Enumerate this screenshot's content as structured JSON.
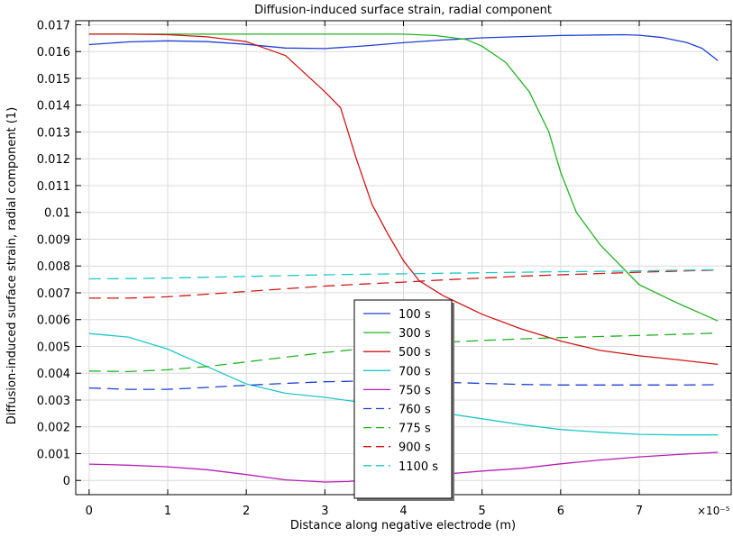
{
  "chart_data": {
    "type": "line",
    "title": "Diffusion-induced surface strain, radial component",
    "xlabel": "Distance along negative electrode (m)",
    "ylabel": "Diffusion-induced surface strain, radial component (1)",
    "x_multiplier": "×10⁻⁵",
    "xlim": [
      -0.17,
      8.17
    ],
    "ylim": [
      -0.00053,
      0.01715
    ],
    "x_ticks": [
      0,
      1,
      2,
      3,
      4,
      5,
      6,
      7
    ],
    "y_ticks": [
      0,
      0.001,
      0.002,
      0.003,
      0.004,
      0.005,
      0.006,
      0.007,
      0.008,
      0.009,
      0.01,
      0.011,
      0.012,
      0.013,
      0.014,
      0.015,
      0.016,
      0.017
    ],
    "grid": true,
    "legend_position": "center",
    "series": [
      {
        "name": "100 s",
        "color": "#1f3fd6",
        "dash": "solid",
        "x": [
          0,
          0.5,
          1,
          1.5,
          2,
          2.5,
          3,
          3.5,
          4,
          4.5,
          5,
          5.5,
          6,
          6.5,
          6.8,
          7,
          7.3,
          7.6,
          7.8,
          8.0
        ],
        "y": [
          0.01626,
          0.01636,
          0.0164,
          0.01637,
          0.01627,
          0.01613,
          0.01611,
          0.01621,
          0.01633,
          0.01643,
          0.01651,
          0.01656,
          0.0166,
          0.01662,
          0.01663,
          0.01661,
          0.01652,
          0.01634,
          0.01612,
          0.01566
        ]
      },
      {
        "name": "300 s",
        "color": "#22b322",
        "dash": "solid",
        "x": [
          0,
          1,
          2,
          3,
          4,
          4.4,
          4.8,
          5.0,
          5.3,
          5.6,
          5.85,
          6.0,
          6.2,
          6.5,
          7.0,
          7.5,
          8.0
        ],
        "y": [
          0.01665,
          0.01665,
          0.01665,
          0.01665,
          0.01665,
          0.0166,
          0.01645,
          0.0162,
          0.0156,
          0.0145,
          0.013,
          0.0115,
          0.01,
          0.0088,
          0.0073,
          0.0066,
          0.00595
        ]
      },
      {
        "name": "500 s",
        "color": "#d01515",
        "dash": "solid",
        "x": [
          0,
          0.5,
          1,
          1.5,
          2,
          2.5,
          3,
          3.2,
          3.4,
          3.6,
          3.8,
          4,
          4.2,
          4.5,
          5,
          5.5,
          6,
          6.5,
          7,
          7.5,
          8.0
        ],
        "y": [
          0.01665,
          0.01665,
          0.01663,
          0.01655,
          0.01637,
          0.01585,
          0.0145,
          0.0139,
          0.012,
          0.0103,
          0.0092,
          0.0082,
          0.00745,
          0.0069,
          0.0062,
          0.00565,
          0.0052,
          0.00485,
          0.00465,
          0.0045,
          0.00433
        ]
      },
      {
        "name": "700 s",
        "color": "#1ec8c8",
        "dash": "solid",
        "x": [
          0,
          0.5,
          1,
          1.5,
          2,
          2.5,
          3,
          3.5,
          4,
          4.5,
          5,
          5.5,
          6,
          6.5,
          7,
          7.5,
          8.0
        ],
        "y": [
          0.00548,
          0.00535,
          0.0049,
          0.00425,
          0.0036,
          0.00325,
          0.0031,
          0.0029,
          0.00268,
          0.00252,
          0.0023,
          0.00208,
          0.0019,
          0.0018,
          0.00172,
          0.0017,
          0.0017
        ]
      },
      {
        "name": "750 s",
        "color": "#b81cb8",
        "dash": "solid",
        "x": [
          0,
          0.5,
          1,
          1.5,
          2,
          2.5,
          3,
          3.3,
          3.6,
          4,
          4.5,
          5,
          5.5,
          6,
          6.5,
          7,
          7.5,
          8.0
        ],
        "y": [
          0.00061,
          0.00057,
          0.00051,
          0.0004,
          0.00022,
          2e-05,
          -6e-05,
          -4e-05,
          3e-05,
          0.00013,
          0.00023,
          0.00035,
          0.00045,
          0.00062,
          0.00076,
          0.00088,
          0.00097,
          0.00105
        ]
      },
      {
        "name": "760 s",
        "color": "#1f3fd6",
        "dash": "dashed",
        "x": [
          0,
          0.5,
          1,
          1.5,
          2,
          2.5,
          3,
          3.5,
          4,
          4.5,
          5,
          5.5,
          6,
          6.5,
          7,
          7.5,
          8.0
        ],
        "y": [
          0.00345,
          0.0034,
          0.0034,
          0.00347,
          0.00355,
          0.00362,
          0.00368,
          0.00371,
          0.0037,
          0.00366,
          0.00362,
          0.00358,
          0.00356,
          0.00356,
          0.00356,
          0.00356,
          0.00357
        ]
      },
      {
        "name": "775 s",
        "color": "#22b322",
        "dash": "dashed",
        "x": [
          0,
          0.5,
          1,
          1.5,
          2,
          2.5,
          3,
          3.5,
          4,
          4.5,
          5,
          5.5,
          6,
          6.5,
          7,
          7.5,
          8.0
        ],
        "y": [
          0.00408,
          0.00406,
          0.00413,
          0.00425,
          0.00442,
          0.0046,
          0.00477,
          0.00492,
          0.00505,
          0.00515,
          0.00522,
          0.00528,
          0.00533,
          0.00537,
          0.00541,
          0.00545,
          0.0055
        ]
      },
      {
        "name": "900 s",
        "color": "#d01515",
        "dash": "dashed",
        "x": [
          0,
          0.5,
          1,
          1.5,
          2,
          2.5,
          3,
          3.5,
          4,
          4.5,
          5,
          5.5,
          6,
          6.5,
          7,
          7.5,
          8.0
        ],
        "y": [
          0.0068,
          0.0068,
          0.00685,
          0.00695,
          0.00705,
          0.00715,
          0.00725,
          0.00733,
          0.0074,
          0.00748,
          0.00755,
          0.00762,
          0.00767,
          0.00772,
          0.00777,
          0.00781,
          0.00785
        ]
      },
      {
        "name": "1100 s",
        "color": "#1ec8c8",
        "dash": "dashed",
        "x": [
          0,
          0.5,
          1,
          1.5,
          2,
          2.5,
          3,
          3.5,
          4,
          4.5,
          5,
          5.5,
          6,
          6.5,
          7,
          7.5,
          8.0
        ],
        "y": [
          0.00752,
          0.00753,
          0.00755,
          0.00758,
          0.00761,
          0.00764,
          0.00767,
          0.00769,
          0.00771,
          0.00773,
          0.00775,
          0.00777,
          0.00779,
          0.0078,
          0.00782,
          0.00784,
          0.00786
        ]
      }
    ]
  }
}
